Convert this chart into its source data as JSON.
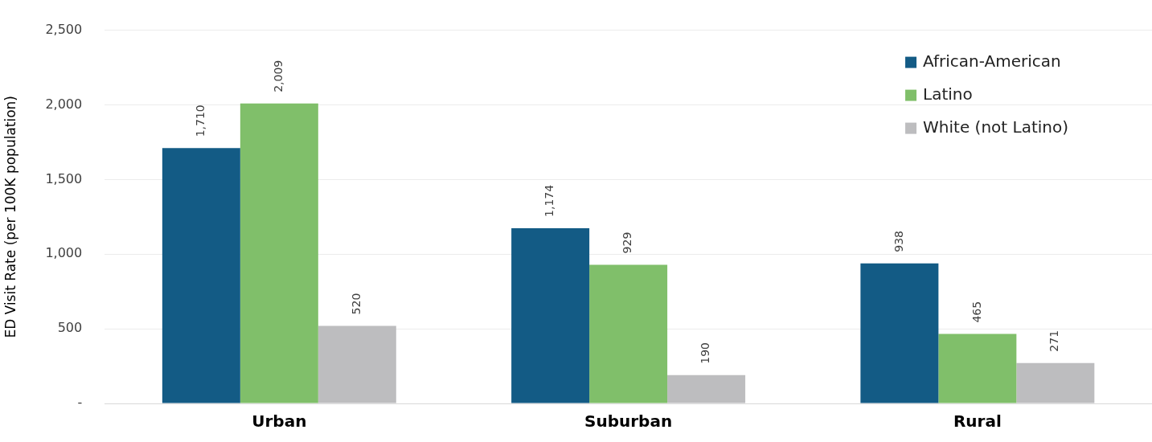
{
  "chart_data": {
    "type": "bar",
    "ylabel": "ED Visit Rate (per 100K population)",
    "categories": [
      "Urban",
      "Suburban",
      "Rural"
    ],
    "series": [
      {
        "name": "African-American",
        "color": "#135b85",
        "values": [
          1710,
          1174,
          938
        ],
        "value_labels": [
          "1,710",
          "1,174",
          "938"
        ]
      },
      {
        "name": "Latino",
        "color": "#80bf6a",
        "values": [
          2009,
          929,
          465
        ],
        "value_labels": [
          "2,009",
          "929",
          "465"
        ]
      },
      {
        "name": "White (not Latino)",
        "color": "#bdbdbf",
        "values": [
          520,
          190,
          271
        ],
        "value_labels": [
          "520",
          "190",
          "271"
        ]
      }
    ],
    "ylim": [
      0,
      2500
    ],
    "yticks": [
      {
        "value": 0,
        "label": "-"
      },
      {
        "value": 500,
        "label": "500"
      },
      {
        "value": 1000,
        "label": "1,000"
      },
      {
        "value": 1500,
        "label": "1,500"
      },
      {
        "value": 2000,
        "label": "2,000"
      },
      {
        "value": 2500,
        "label": "2,500"
      }
    ],
    "grid": "y",
    "legend": "top right"
  }
}
